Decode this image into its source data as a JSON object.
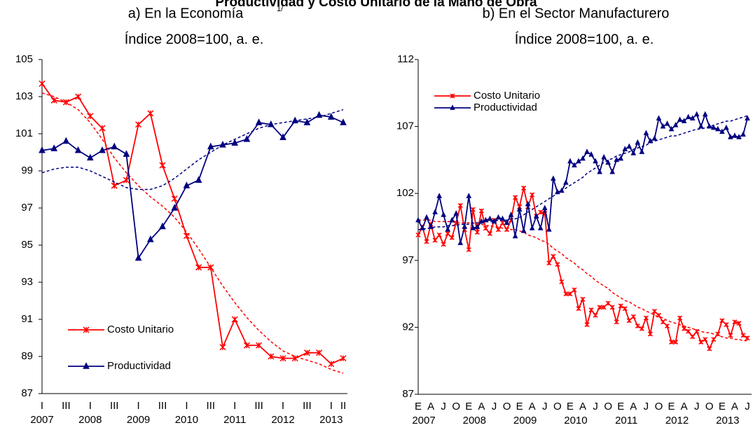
{
  "title": "Productividad y Costo Unitario de la Mano de Obra",
  "chart_data": [
    {
      "type": "line",
      "title": "a) En la Economía",
      "title_note": "1/",
      "subtitle": "Índice 2008=100, a. e.",
      "categories": [
        "I",
        null,
        "III",
        null,
        "I",
        null,
        "III",
        null,
        "I",
        null,
        "III",
        null,
        "I",
        null,
        "III",
        null,
        "I",
        null,
        "III",
        null,
        "I",
        null,
        "III",
        null,
        "I",
        "II"
      ],
      "years": [
        "2007",
        "2008",
        "2009",
        "2010",
        "2011",
        "2012",
        "2013"
      ],
      "ylim": [
        87,
        105
      ],
      "yticks": [
        87,
        89,
        91,
        93,
        95,
        97,
        99,
        101,
        103,
        105
      ],
      "legend": "lower left",
      "series": [
        {
          "name": "Costo Unitario",
          "color": "#ff0000",
          "marker": "star",
          "values": [
            103.7,
            102.8,
            102.7,
            103.0,
            101.95,
            101.3,
            98.2,
            98.5,
            101.5,
            102.1,
            99.3,
            97.5,
            95.5,
            93.8,
            93.8,
            89.5,
            91.0,
            89.6,
            89.6,
            89.0,
            88.9,
            88.9,
            89.2,
            89.2,
            88.6,
            88.9
          ],
          "trend": [
            103.2,
            103.0,
            102.7,
            102.3,
            101.6,
            100.7,
            99.7,
            98.9,
            98.2,
            97.6,
            97.1,
            96.5,
            95.7,
            94.8,
            93.8,
            92.8,
            91.9,
            91.1,
            90.4,
            89.8,
            89.3,
            89.0,
            88.8,
            88.6,
            88.3,
            88.1
          ]
        },
        {
          "name": "Productividad",
          "color": "#000080",
          "marker": "triangle",
          "values": [
            100.1,
            100.2,
            100.6,
            100.1,
            99.7,
            100.1,
            100.3,
            99.9,
            94.3,
            95.3,
            96.0,
            97.0,
            98.2,
            98.5,
            100.3,
            100.4,
            100.5,
            100.7,
            101.6,
            101.5,
            100.8,
            101.7,
            101.6,
            102.0,
            101.9,
            101.6
          ],
          "trend": [
            98.9,
            99.1,
            99.2,
            99.2,
            99.0,
            98.7,
            98.4,
            98.1,
            98.0,
            98.0,
            98.2,
            98.6,
            99.1,
            99.6,
            100.0,
            100.4,
            100.7,
            101.0,
            101.3,
            101.5,
            101.6,
            101.7,
            101.8,
            101.9,
            102.1,
            102.3
          ]
        }
      ]
    },
    {
      "type": "line",
      "title": "b) En el Sector Manufacturero",
      "subtitle": "Índice 2008=100, a. e.",
      "categories": [
        "E",
        null,
        null,
        "A",
        null,
        null,
        "J",
        null,
        null,
        "O",
        null,
        null,
        "E",
        null,
        null,
        "A",
        null,
        null,
        "J",
        null,
        null,
        "O",
        null,
        null,
        "E",
        null,
        null,
        "A",
        null,
        null,
        "J",
        null,
        null,
        "O",
        null,
        null,
        "E",
        null,
        null,
        "A",
        null,
        null,
        "J",
        null,
        null,
        "O",
        null,
        null,
        "E",
        null,
        null,
        "A",
        null,
        null,
        "J",
        null,
        null,
        "O",
        null,
        null,
        "E",
        null,
        null,
        "A",
        null,
        null,
        "J",
        null,
        null,
        "O",
        null,
        null,
        "E",
        null,
        null,
        "A",
        null,
        null,
        "J"
      ],
      "years": [
        "2007",
        "2008",
        "2009",
        "2010",
        "2011",
        "2012",
        "2013"
      ],
      "ylim": [
        87,
        112
      ],
      "yticks": [
        87,
        92,
        97,
        102,
        107,
        112
      ],
      "legend": "upper left",
      "series": [
        {
          "name": "Costo Unitario",
          "color": "#ff0000",
          "marker": "star",
          "values": [
            98.9,
            99.5,
            98.4,
            99.7,
            98.5,
            98.9,
            98.2,
            99.0,
            98.7,
            99.8,
            101.1,
            99.3,
            97.8,
            100.8,
            99.1,
            100.7,
            99.4,
            99.0,
            100.0,
            99.3,
            99.8,
            99.3,
            100.0,
            101.7,
            101.0,
            102.4,
            101.0,
            101.9,
            100.3,
            100.6,
            100.5,
            96.8,
            97.3,
            96.7,
            95.4,
            94.5,
            94.5,
            94.8,
            93.4,
            94.1,
            92.2,
            93.3,
            92.9,
            93.5,
            93.5,
            93.8,
            93.5,
            92.4,
            93.6,
            93.4,
            92.5,
            92.8,
            92.1,
            91.9,
            92.7,
            91.5,
            93.2,
            92.9,
            92.4,
            92.1,
            90.9,
            90.9,
            92.7,
            91.9,
            91.7,
            91.3,
            91.7,
            90.9,
            91.1,
            90.4,
            91.1,
            91.5,
            92.5,
            92.2,
            91.4,
            92.4,
            92.3,
            91.4,
            91.2
          ],
          "trend": [
            100.0,
            100.0,
            100.0,
            100.0,
            99.9,
            99.9,
            99.9,
            99.9,
            99.9,
            99.8,
            99.8,
            99.8,
            99.8,
            99.8,
            99.7,
            99.7,
            99.6,
            99.6,
            99.5,
            99.5,
            99.4,
            99.4,
            99.3,
            99.3,
            99.2,
            99.1,
            98.9,
            98.8,
            98.7,
            98.5,
            98.4,
            98.2,
            97.9,
            97.7,
            97.5,
            97.2,
            97.0,
            96.8,
            96.5,
            96.3,
            96.0,
            95.8,
            95.5,
            95.3,
            95.1,
            94.9,
            94.6,
            94.4,
            94.2,
            94.0,
            93.9,
            93.7,
            93.5,
            93.4,
            93.2,
            93.1,
            92.9,
            92.8,
            92.7,
            92.5,
            92.4,
            92.3,
            92.2,
            92.1,
            92.0,
            91.9,
            91.8,
            91.7,
            91.6,
            91.6,
            91.5,
            91.4,
            91.3,
            91.2,
            91.2,
            91.1,
            91.1,
            91.0,
            91.0
          ]
        },
        {
          "name": "Productividad",
          "color": "#000080",
          "marker": "triangle",
          "values": [
            100.0,
            99.4,
            100.2,
            99.5,
            100.6,
            101.8,
            100.4,
            99.3,
            100.0,
            100.5,
            98.3,
            99.5,
            101.8,
            99.4,
            99.5,
            99.9,
            100.0,
            100.1,
            99.9,
            100.2,
            100.1,
            99.8,
            100.4,
            98.8,
            100.8,
            99.2,
            101.2,
            99.4,
            100.3,
            99.4,
            100.9,
            99.3,
            103.1,
            102.1,
            102.2,
            102.8,
            104.4,
            104.1,
            104.4,
            104.6,
            105.1,
            104.9,
            104.4,
            103.6,
            104.7,
            104.3,
            103.6,
            104.5,
            104.6,
            105.3,
            105.5,
            105.0,
            105.8,
            105.1,
            106.5,
            105.9,
            106.1,
            107.6,
            107.0,
            107.2,
            106.8,
            107.1,
            107.5,
            107.4,
            107.7,
            107.6,
            107.9,
            107.0,
            107.9,
            107.0,
            106.9,
            106.8,
            106.6,
            106.9,
            106.2,
            106.3,
            106.2,
            106.4,
            107.6
          ],
          "trend": [
            99.3,
            99.3,
            99.4,
            99.4,
            99.5,
            99.5,
            99.5,
            99.6,
            99.6,
            99.6,
            99.7,
            99.7,
            99.7,
            99.8,
            99.8,
            99.8,
            99.9,
            99.9,
            99.9,
            100.0,
            100.0,
            100.0,
            100.1,
            100.1,
            100.2,
            100.4,
            100.6,
            100.8,
            101.0,
            101.2,
            101.4,
            101.6,
            101.8,
            102.0,
            102.2,
            102.4,
            102.6,
            102.8,
            103.0,
            103.2,
            103.5,
            103.7,
            103.9,
            104.1,
            104.3,
            104.5,
            104.6,
            104.8,
            104.9,
            105.0,
            105.1,
            105.3,
            105.4,
            105.5,
            105.6,
            105.8,
            105.9,
            106.0,
            106.1,
            106.2,
            106.3,
            106.3,
            106.4,
            106.5,
            106.6,
            106.7,
            106.8,
            106.8,
            106.9,
            107.0,
            107.1,
            107.2,
            107.3,
            107.4,
            107.4,
            107.5,
            107.6,
            107.7,
            107.8
          ]
        }
      ]
    }
  ]
}
